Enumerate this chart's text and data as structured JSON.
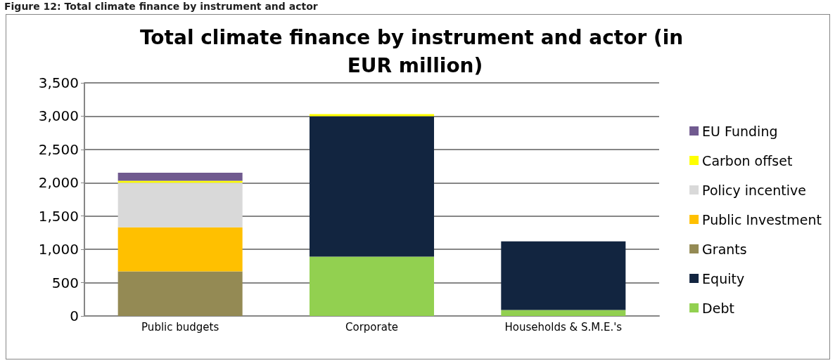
{
  "chart_data": {
    "type": "bar",
    "title": "Total climate finance by instrument and actor (in EUR million)",
    "annotations": [
      "Figure 12: Total climate finance by instrument and actor"
    ],
    "categories": [
      "Public budgets",
      "Corporate",
      "Households & S.M.E.'s"
    ],
    "stacked": true,
    "series": [
      {
        "name": "Debt",
        "color": "#92d050",
        "values": [
          null,
          890,
          90
        ]
      },
      {
        "name": "Equity",
        "color": "#122540",
        "values": [
          null,
          2110,
          1030
        ]
      },
      {
        "name": "Grants",
        "color": "#948a54",
        "values": [
          670,
          null,
          null
        ]
      },
      {
        "name": "Public Investment",
        "color": "#ffc000",
        "values": [
          660,
          null,
          null
        ]
      },
      {
        "name": "Policy incentive",
        "color": "#d9d9d9",
        "values": [
          670,
          null,
          null
        ]
      },
      {
        "name": "Carbon offset",
        "color": "#ffff00",
        "values": [
          30,
          30,
          null
        ]
      },
      {
        "name": "EU Funding",
        "color": "#705a8f",
        "values": [
          120,
          null,
          null
        ]
      }
    ],
    "ylim": [
      0,
      3500
    ],
    "yticks": [
      0,
      500,
      {
        "value": 1000,
        "label": "1,000"
      },
      {
        "value": 1500,
        "label": "1,500"
      },
      {
        "value": 2000,
        "label": "2,000"
      },
      {
        "value": 2500,
        "label": "2,500"
      },
      {
        "value": 3000,
        "label": "3,000"
      },
      {
        "value": 3500,
        "label": "3,500"
      }
    ],
    "grid": "y",
    "legend": "right"
  }
}
